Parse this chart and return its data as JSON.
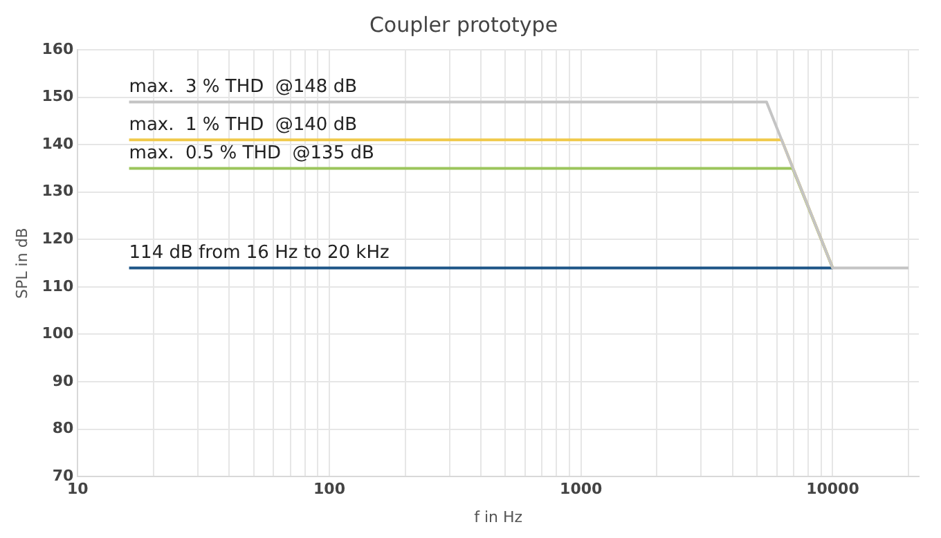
{
  "chart_data": {
    "type": "line",
    "title": "Coupler prototype",
    "xlabel": "f in Hz",
    "ylabel": "SPL in dB",
    "log": "x",
    "grid": true,
    "legend": false,
    "marker": "none",
    "line_style": "solid",
    "xlim": [
      10,
      22000
    ],
    "xticks": [
      10,
      {
        "value": 20,
        "label": null
      },
      {
        "value": 30,
        "label": null
      },
      {
        "value": 40,
        "label": null
      },
      {
        "value": 50,
        "label": null
      },
      {
        "value": 60,
        "label": null
      },
      {
        "value": 70,
        "label": null
      },
      {
        "value": 80,
        "label": null
      },
      {
        "value": 90,
        "label": null
      },
      100,
      {
        "value": 200,
        "label": null
      },
      {
        "value": 300,
        "label": null
      },
      {
        "value": 400,
        "label": null
      },
      {
        "value": 500,
        "label": null
      },
      {
        "value": 600,
        "label": null
      },
      {
        "value": 700,
        "label": null
      },
      {
        "value": 800,
        "label": null
      },
      {
        "value": 900,
        "label": null
      },
      1000,
      {
        "value": 2000,
        "label": null
      },
      {
        "value": 3000,
        "label": null
      },
      {
        "value": 4000,
        "label": null
      },
      {
        "value": 5000,
        "label": null
      },
      {
        "value": 6000,
        "label": null
      },
      {
        "value": 7000,
        "label": null
      },
      {
        "value": 8000,
        "label": null
      },
      {
        "value": 9000,
        "label": null
      },
      10000,
      {
        "value": 20000,
        "label": null
      }
    ],
    "ylim": [
      70,
      160
    ],
    "yticks": [
      70,
      80,
      90,
      100,
      110,
      120,
      130,
      140,
      150,
      160
    ],
    "series": [
      {
        "name": "max.  3 % THD  @148 dB",
        "color": "#c4c4c4",
        "x": [
          16,
          5460,
          10000,
          20000
        ],
        "values": [
          149,
          149,
          114,
          114
        ]
      },
      {
        "name": "max.  1 % THD  @140 dB",
        "color": "#f0c94a",
        "x": [
          16,
          6270,
          10000
        ],
        "values": [
          141,
          141,
          114
        ]
      },
      {
        "name": "max.  0.5 % THD  @135 dB",
        "color": "#9cc55c",
        "x": [
          16,
          6930,
          10000
        ],
        "values": [
          135,
          135,
          114
        ]
      },
      {
        "name": "114 dB from 16 Hz to 20 kHz",
        "color": "#1d5587",
        "x": [
          16,
          10000
        ],
        "values": [
          114,
          114
        ]
      }
    ]
  }
}
